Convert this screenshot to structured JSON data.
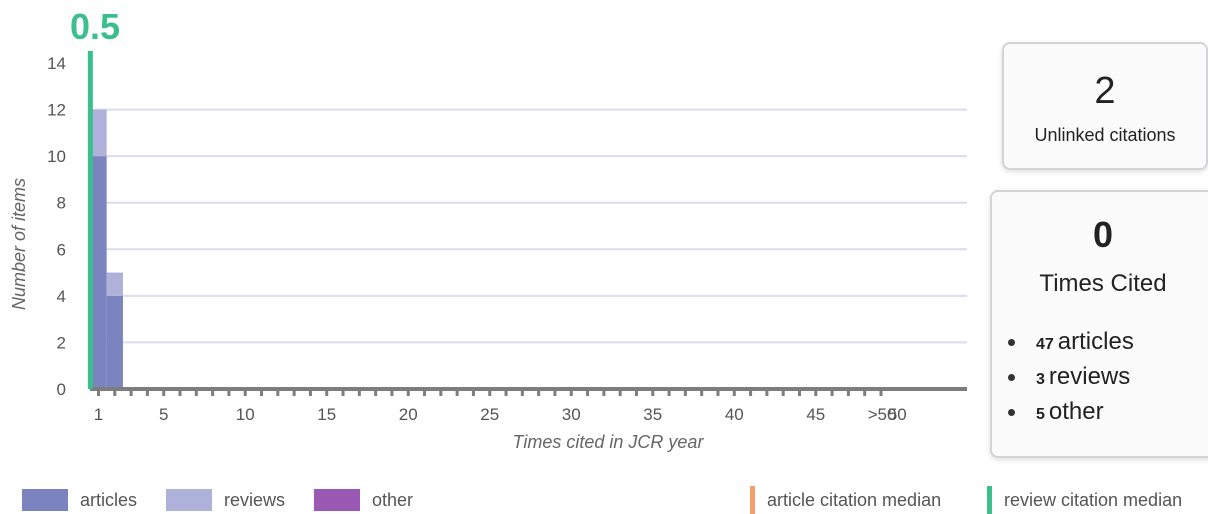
{
  "chart_data": {
    "type": "bar",
    "stacked": true,
    "xlabel": "Times cited in JCR year",
    "ylabel": "Number of items",
    "ylim": [
      0,
      14
    ],
    "y_ticks": [
      0,
      2,
      4,
      6,
      8,
      10,
      12,
      14
    ],
    "x_tick_labels": [
      "1",
      "5",
      "10",
      "15",
      "20",
      "25",
      "30",
      "35",
      "40",
      "45",
      "50",
      ">50"
    ],
    "grid": true,
    "series": [
      {
        "name": "articles",
        "color": "#7b84bf",
        "points": [
          {
            "x": 1,
            "value": 10
          },
          {
            "x": 2,
            "value": 4
          }
        ]
      },
      {
        "name": "reviews",
        "color": "#aeb1da",
        "points": [
          {
            "x": 1,
            "value": 2
          },
          {
            "x": 2,
            "value": 1
          }
        ]
      },
      {
        "name": "other",
        "color": "#9b59b6",
        "points": []
      }
    ],
    "medians": [
      {
        "name": "article citation median",
        "color": "#f5a06a"
      },
      {
        "name": "review citation median",
        "color": "#3cbf8c",
        "value": 0.5,
        "label": "0.5"
      }
    ]
  },
  "unlinked": {
    "value": "2",
    "label": "Unlinked citations"
  },
  "times_cited": {
    "value": "0",
    "label": "Times Cited",
    "breakdown": [
      {
        "count": "47",
        "label": "articles"
      },
      {
        "count": "3",
        "label": "reviews"
      },
      {
        "count": "5",
        "label": "other"
      }
    ]
  },
  "legend": {
    "articles": "articles",
    "reviews": "reviews",
    "other": "other",
    "article_median": "article citation median",
    "review_median": "review citation median"
  }
}
